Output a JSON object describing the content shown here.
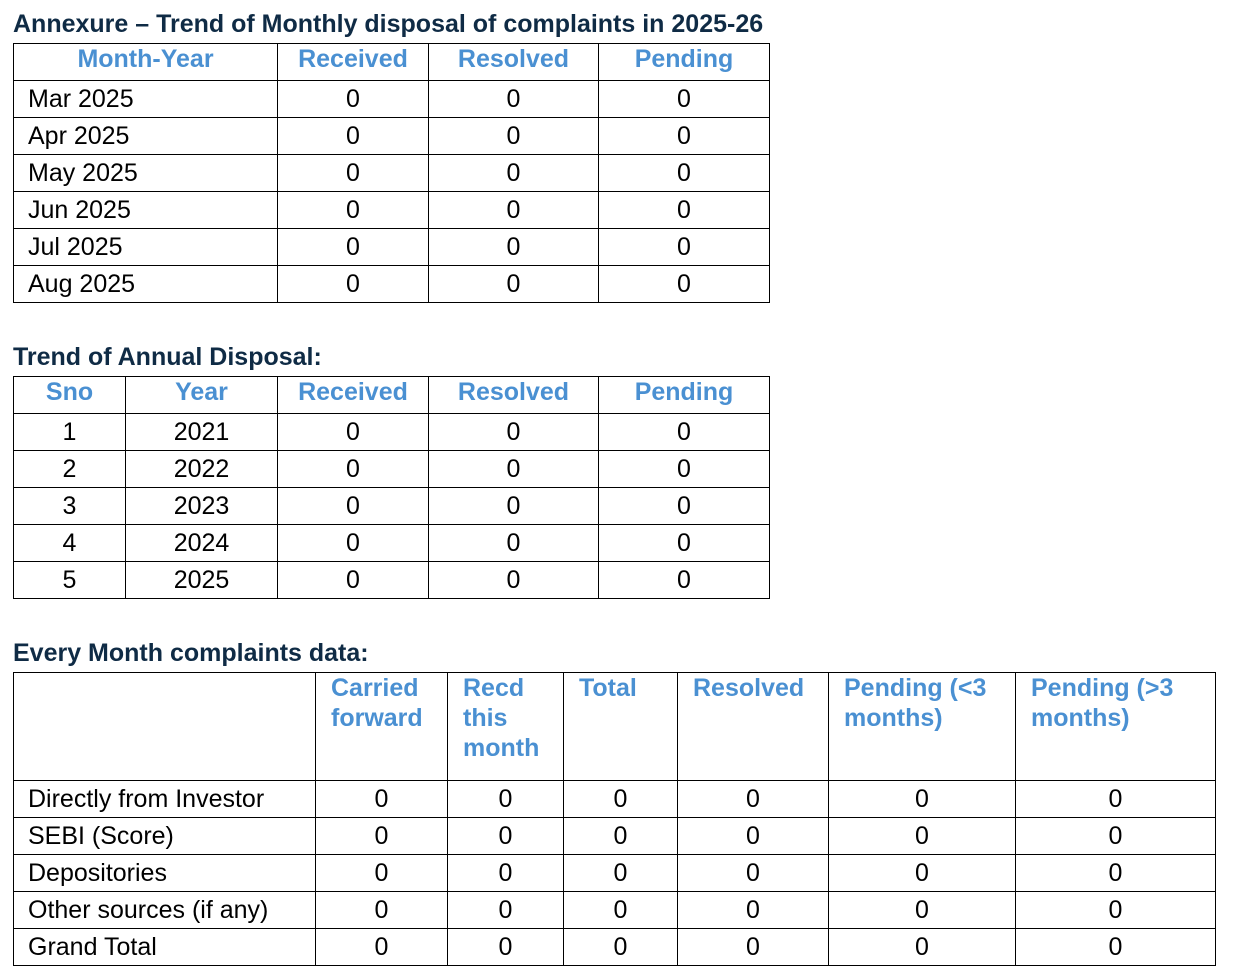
{
  "monthly": {
    "title": "Annexure – Trend of Monthly disposal of complaints in 2025-26",
    "headers": [
      "Month-Year",
      "Received",
      "Resolved",
      "Pending"
    ],
    "rows": [
      [
        "Mar 2025",
        "0",
        "0",
        "0"
      ],
      [
        "Apr 2025",
        "0",
        "0",
        "0"
      ],
      [
        "May 2025",
        "0",
        "0",
        "0"
      ],
      [
        "Jun 2025",
        "0",
        "0",
        "0"
      ],
      [
        "Jul 2025",
        "0",
        "0",
        "0"
      ],
      [
        "Aug 2025",
        "0",
        "0",
        "0"
      ]
    ]
  },
  "annual": {
    "title": "Trend of Annual Disposal:",
    "headers": [
      "Sno",
      "Year",
      "Received",
      "Resolved",
      "Pending"
    ],
    "rows": [
      [
        "1",
        "2021",
        "0",
        "0",
        "0"
      ],
      [
        "2",
        "2022",
        "0",
        "0",
        "0"
      ],
      [
        "3",
        "2023",
        "0",
        "0",
        "0"
      ],
      [
        "4",
        "2024",
        "0",
        "0",
        "0"
      ],
      [
        "5",
        "2025",
        "0",
        "0",
        "0"
      ]
    ]
  },
  "every_month": {
    "title": "Every Month complaints data:",
    "headers": [
      "",
      "Carried forward",
      "Recd this month",
      "Total",
      "Resolved",
      "Pending (<3 months)",
      "Pending (>3 months)"
    ],
    "rows": [
      [
        "Directly from Investor",
        "0",
        "0",
        "0",
        "0",
        "0",
        "0"
      ],
      [
        "SEBI (Score)",
        "0",
        "0",
        "0",
        "0",
        "0",
        "0"
      ],
      [
        "Depositories",
        "0",
        "0",
        "0",
        "0",
        "0",
        "0"
      ],
      [
        "Other sources (if any)",
        "0",
        "0",
        "0",
        "0",
        "0",
        "0"
      ],
      [
        "Grand Total",
        "0",
        "0",
        "0",
        "0",
        "0",
        "0"
      ]
    ]
  }
}
